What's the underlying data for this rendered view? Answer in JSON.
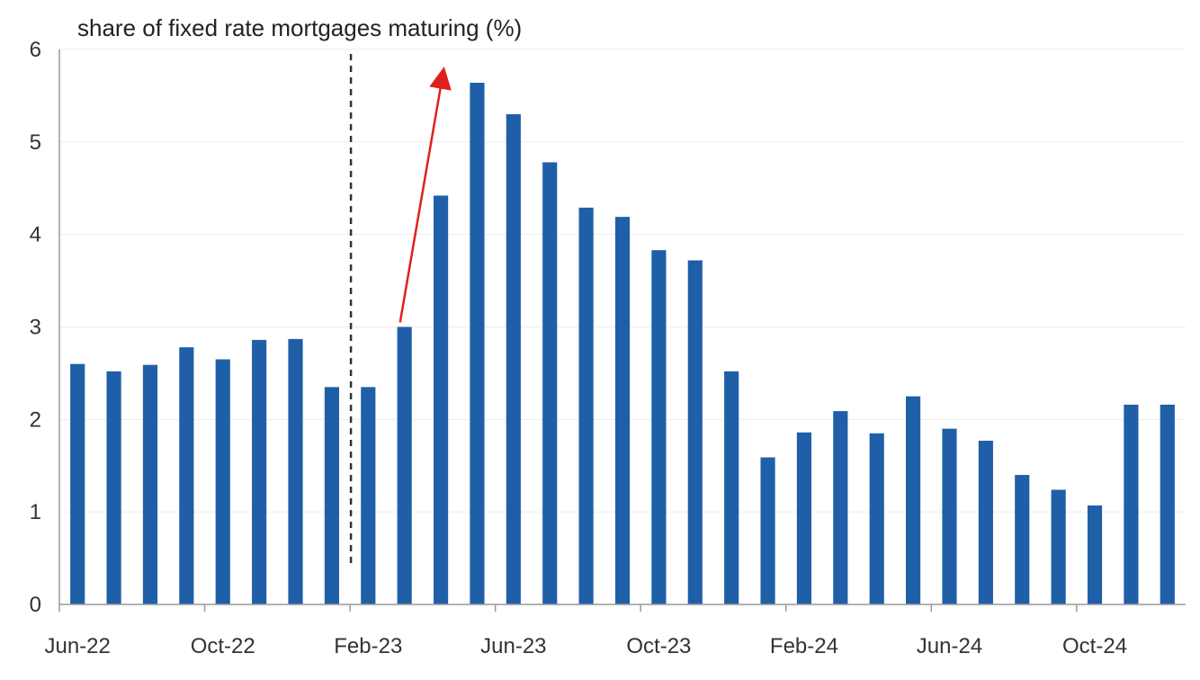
{
  "chart_data": {
    "type": "bar",
    "title": "share of fixed rate mortgages maturing (%)",
    "xlabel": "",
    "ylabel": "",
    "ylim": [
      0,
      6
    ],
    "yticks": [
      0,
      1,
      2,
      3,
      4,
      5,
      6
    ],
    "grid": true,
    "legend": "none",
    "bar_color": "#1f5fa8",
    "categories": [
      "Jun-22",
      "Jul-22",
      "Aug-22",
      "Sep-22",
      "Oct-22",
      "Nov-22",
      "Dec-22",
      "Jan-23",
      "Feb-23",
      "Mar-23",
      "Apr-23",
      "May-23",
      "Jun-23",
      "Jul-23",
      "Aug-23",
      "Sep-23",
      "Oct-23",
      "Nov-23",
      "Dec-23",
      "Jan-24",
      "Feb-24",
      "Mar-24",
      "Apr-24",
      "May-24",
      "Jun-24",
      "Jul-24",
      "Aug-24",
      "Sep-24",
      "Oct-24",
      "Nov-24",
      "Dec-24"
    ],
    "values": [
      2.6,
      2.52,
      2.59,
      2.78,
      2.65,
      2.86,
      2.87,
      2.35,
      2.35,
      3.0,
      4.42,
      5.64,
      5.3,
      4.78,
      4.29,
      4.19,
      3.83,
      3.72,
      2.52,
      1.59,
      1.86,
      2.09,
      1.85,
      2.25,
      1.9,
      1.77,
      1.4,
      1.24,
      1.07,
      2.16,
      2.16
    ],
    "xtick_labels": [
      "Jun-22",
      "Oct-22",
      "Feb-23",
      "Jun-23",
      "Oct-23",
      "Feb-24",
      "Jun-24",
      "Oct-24"
    ],
    "annotations": {
      "vertical_dashed_line_color": "#333333",
      "arrow_color": "#e0201c"
    }
  }
}
